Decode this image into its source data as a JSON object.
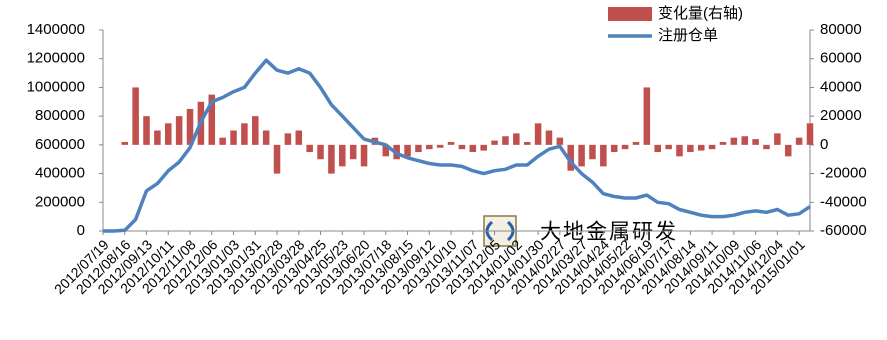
{
  "chart_data": {
    "type": "bar-line",
    "watermark": "大地金属研发",
    "categories": [
      "2012/07/19",
      null,
      "2012/08/16",
      null,
      "2012/09/13",
      null,
      "2012/10/11",
      null,
      "2012/11/08",
      null,
      "2012/12/06",
      null,
      "2013/01/03",
      null,
      "2013/01/31",
      null,
      "2013/02/28",
      null,
      "2013/03/28",
      null,
      "2013/04/25",
      null,
      "2013/05/23",
      null,
      "2013/06/20",
      null,
      "2013/07/18",
      null,
      "2013/08/15",
      null,
      "2013/09/12",
      null,
      "2013/10/10",
      null,
      "2013/11/07",
      null,
      "2013/12/05",
      null,
      "2014/01/02",
      null,
      "2014/01/30",
      null,
      "2014/02/27",
      null,
      "2014/03/27",
      null,
      "2014/04/24",
      null,
      "2014/05/22",
      null,
      "2014/06/19",
      null,
      "2014/07/17",
      null,
      "2014/08/14",
      null,
      "2014/09/11",
      null,
      "2014/10/09",
      null,
      "2014/11/06",
      null,
      "2014/12/04",
      null,
      "2015/01/01",
      null
    ],
    "series": [
      {
        "name": "变化量(右轴)",
        "type": "bar",
        "axis": "y2",
        "color": "#c0504d",
        "values": [
          0,
          0,
          2000,
          40000,
          20000,
          10000,
          15000,
          20000,
          25000,
          30000,
          35000,
          5000,
          10000,
          15000,
          20000,
          10000,
          -20000,
          8000,
          10000,
          -5000,
          -10000,
          -20000,
          -15000,
          -10000,
          -15000,
          5000,
          -8000,
          -10000,
          -8000,
          -5000,
          -3000,
          -2000,
          2000,
          -3000,
          -5000,
          -4000,
          3000,
          6000,
          8000,
          2000,
          15000,
          10000,
          5000,
          -18000,
          -15000,
          -10000,
          -15000,
          -5000,
          -3000,
          2000,
          40000,
          -5000,
          -3000,
          -8000,
          -5000,
          -4000,
          -3000,
          2000,
          5000,
          6000,
          4000,
          -3000,
          8000,
          -8000,
          5000,
          15000
        ]
      },
      {
        "name": "注册仓单",
        "type": "line",
        "axis": "y",
        "color": "#4f81bd",
        "values": [
          0,
          0,
          5000,
          80000,
          280000,
          330000,
          420000,
          480000,
          580000,
          760000,
          900000,
          930000,
          970000,
          1000000,
          1100000,
          1190000,
          1120000,
          1100000,
          1130000,
          1100000,
          1000000,
          880000,
          800000,
          720000,
          640000,
          620000,
          600000,
          540000,
          510000,
          490000,
          470000,
          460000,
          460000,
          450000,
          420000,
          400000,
          420000,
          430000,
          460000,
          460000,
          520000,
          570000,
          590000,
          480000,
          400000,
          340000,
          260000,
          240000,
          230000,
          230000,
          250000,
          200000,
          190000,
          150000,
          130000,
          110000,
          100000,
          100000,
          110000,
          130000,
          140000,
          130000,
          150000,
          110000,
          120000,
          170000
        ]
      }
    ],
    "ylim": [
      0,
      1400000
    ],
    "yticks": [
      0,
      200000,
      400000,
      600000,
      800000,
      1000000,
      1200000,
      1400000
    ],
    "y2lim": [
      -60000,
      80000
    ],
    "y2ticks": [
      -60000,
      -40000,
      -20000,
      0,
      20000,
      40000,
      60000,
      80000
    ],
    "legend": "top-right"
  }
}
